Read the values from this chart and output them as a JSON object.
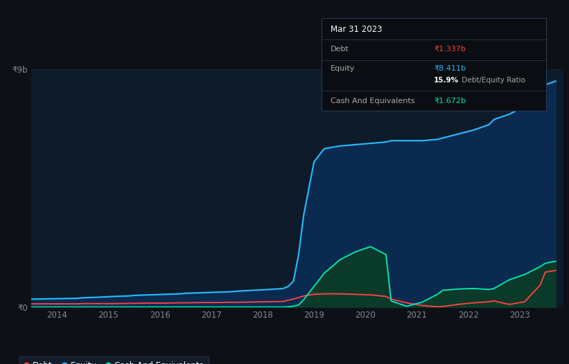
{
  "background_color": "#0d1117",
  "plot_bg_color": "#0d1b2a",
  "tooltip": {
    "date": "Mar 31 2023",
    "debt_label": "Debt",
    "debt_value": "₹1.337b",
    "equity_label": "Equity",
    "equity_value": "₹8.411b",
    "ratio_value": "15.9%",
    "ratio_label": " Debt/Equity Ratio",
    "cash_label": "Cash And Equivalents",
    "cash_value": "₹1.672b"
  },
  "ylabel_top": "₹9b",
  "ylabel_bottom": "₹0",
  "x_ticks": [
    "2014",
    "2015",
    "2016",
    "2017",
    "2018",
    "2019",
    "2020",
    "2021",
    "2022",
    "2023"
  ],
  "legend": [
    {
      "label": "Debt",
      "color": "#ff4040"
    },
    {
      "label": "Equity",
      "color": "#29b6f6"
    },
    {
      "label": "Cash And Equivalents",
      "color": "#00e5b0"
    }
  ],
  "debt_color": "#ff4040",
  "equity_color": "#29b6f6",
  "cash_color": "#00e5b0",
  "equity_fill_color": "#0a2a50",
  "cash_fill_color": "#0a3a2a",
  "years": [
    2013.0,
    2013.3,
    2013.6,
    2013.9,
    2014.0,
    2014.3,
    2014.6,
    2014.9,
    2015.0,
    2015.3,
    2015.6,
    2015.9,
    2016.0,
    2016.3,
    2016.6,
    2016.9,
    2017.0,
    2017.3,
    2017.6,
    2017.9,
    2018.0,
    2018.1,
    2018.2,
    2018.3,
    2018.5,
    2018.7,
    2019.0,
    2019.3,
    2019.6,
    2019.9,
    2020.0,
    2020.3,
    2020.6,
    2020.9,
    2021.0,
    2021.3,
    2021.6,
    2021.9,
    2022.0,
    2022.3,
    2022.6,
    2022.9,
    2023.0,
    2023.2
  ],
  "equity": [
    0.32,
    0.33,
    0.34,
    0.35,
    0.37,
    0.39,
    0.42,
    0.44,
    0.46,
    0.48,
    0.5,
    0.52,
    0.54,
    0.56,
    0.58,
    0.6,
    0.62,
    0.65,
    0.68,
    0.72,
    0.8,
    1.0,
    2.0,
    3.5,
    5.5,
    6.0,
    6.1,
    6.15,
    6.2,
    6.25,
    6.3,
    6.3,
    6.3,
    6.35,
    6.4,
    6.55,
    6.7,
    6.9,
    7.1,
    7.3,
    7.6,
    7.9,
    8.411,
    8.55
  ],
  "debt": [
    0.14,
    0.14,
    0.14,
    0.14,
    0.15,
    0.15,
    0.15,
    0.16,
    0.16,
    0.17,
    0.17,
    0.18,
    0.18,
    0.19,
    0.19,
    0.2,
    0.2,
    0.21,
    0.22,
    0.23,
    0.28,
    0.32,
    0.38,
    0.44,
    0.5,
    0.52,
    0.52,
    0.5,
    0.48,
    0.42,
    0.32,
    0.18,
    0.08,
    0.03,
    0.04,
    0.12,
    0.18,
    0.22,
    0.25,
    0.12,
    0.22,
    0.85,
    1.337,
    1.4
  ],
  "cash": [
    0.02,
    0.02,
    0.02,
    0.02,
    0.02,
    0.02,
    0.02,
    0.02,
    0.02,
    0.02,
    0.02,
    0.02,
    0.02,
    0.02,
    0.02,
    0.02,
    0.02,
    0.02,
    0.02,
    0.02,
    0.03,
    0.05,
    0.1,
    0.3,
    0.8,
    1.3,
    1.8,
    2.1,
    2.3,
    2.0,
    0.25,
    0.05,
    0.2,
    0.5,
    0.65,
    0.7,
    0.72,
    0.68,
    0.72,
    1.05,
    1.25,
    1.55,
    1.672,
    1.75
  ],
  "ylim": [
    0,
    9.0
  ],
  "xlim": [
    2013.0,
    2023.35
  ],
  "grid_lines": [
    0,
    1.5,
    3.0,
    4.5,
    6.0,
    7.5,
    9.0
  ]
}
